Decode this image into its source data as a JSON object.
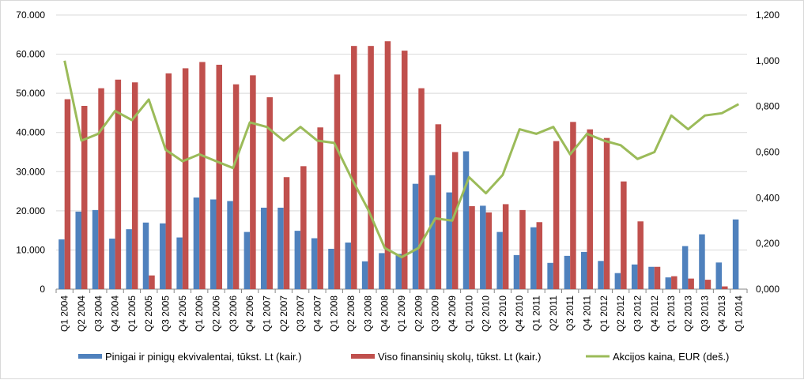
{
  "chart_data": {
    "type": "bar",
    "title": "",
    "categories": [
      "Q1 2004",
      "Q2 2004",
      "Q3 2004",
      "Q4 2004",
      "Q1 2005",
      "Q2 2005",
      "Q3 2005",
      "Q4 2005",
      "Q1 2006",
      "Q2 2006",
      "Q3 2006",
      "Q4 2006",
      "Q1 2007",
      "Q2 2007",
      "Q3 2007",
      "Q4 2007",
      "Q1 2008",
      "Q2 2008",
      "Q3 2008",
      "Q4 2008",
      "Q1 2009",
      "Q2 2009",
      "Q3 2009",
      "Q4 2009",
      "Q1 2010",
      "Q2 2010",
      "Q3 2010",
      "Q4 2010",
      "Q1 2011",
      "Q2 2011",
      "Q3 2011",
      "Q4 2011",
      "Q1 2012",
      "Q2 2012",
      "Q3 2012",
      "Q4 2012",
      "Q1 2013",
      "Q2 2013",
      "Q3 2013",
      "Q4 2013",
      "Q1 2014"
    ],
    "y_left": {
      "ylim": [
        0,
        70000
      ],
      "ticks": [
        "0",
        "10.000",
        "20.000",
        "30.000",
        "40.000",
        "50.000",
        "60.000",
        "70.000"
      ]
    },
    "y_right": {
      "ylim": [
        0,
        1.2
      ],
      "ticks": [
        "0,000",
        "0,200",
        "0,400",
        "0,600",
        "0,800",
        "1,000",
        "1,200"
      ]
    },
    "grid": true,
    "legend_position": "bottom",
    "series": [
      {
        "name": "Pinigai ir pinigų ekvivalentai, tūkst. Lt (kair.)",
        "type": "bar",
        "axis": "left",
        "color": "#4f81bd",
        "values": [
          12700,
          19800,
          20200,
          12900,
          15300,
          17000,
          16800,
          13200,
          23400,
          22900,
          22500,
          14600,
          20800,
          20800,
          14900,
          13000,
          10300,
          11900,
          7100,
          9200,
          9000,
          26900,
          29100,
          24700,
          35200,
          21300,
          14600,
          8700,
          15800,
          6700,
          8500,
          9500,
          7200,
          4100,
          6300,
          5700,
          3000,
          11000,
          14000,
          6800,
          17800
        ]
      },
      {
        "name": "Viso finansinių skolų, tūkst. Lt (kair.)",
        "type": "bar",
        "axis": "left",
        "color": "#c0504d",
        "values": [
          48500,
          46800,
          51300,
          53500,
          52800,
          3500,
          55100,
          56400,
          58000,
          57300,
          52300,
          54600,
          49000,
          28600,
          31400,
          41300,
          54800,
          62100,
          62100,
          63300,
          60900,
          51300,
          42100,
          35000,
          21200,
          19600,
          21700,
          20200,
          17100,
          37800,
          42700,
          40800,
          38600,
          27500,
          17300,
          5700,
          3300,
          2700,
          2400,
          700,
          0
        ]
      },
      {
        "name": "Akcijos kaina, EUR (deš.)",
        "type": "line",
        "axis": "right",
        "color": "#9bbb59",
        "values": [
          1.0,
          0.65,
          0.68,
          0.78,
          0.74,
          0.83,
          0.61,
          0.56,
          0.59,
          0.56,
          0.53,
          0.73,
          0.71,
          0.65,
          0.71,
          0.65,
          0.64,
          0.49,
          0.35,
          0.18,
          0.14,
          0.18,
          0.31,
          0.3,
          0.49,
          0.42,
          0.5,
          0.7,
          0.68,
          0.71,
          0.59,
          0.68,
          0.65,
          0.63,
          0.57,
          0.6,
          0.76,
          0.7,
          0.76,
          0.77,
          0.81
        ]
      }
    ]
  }
}
